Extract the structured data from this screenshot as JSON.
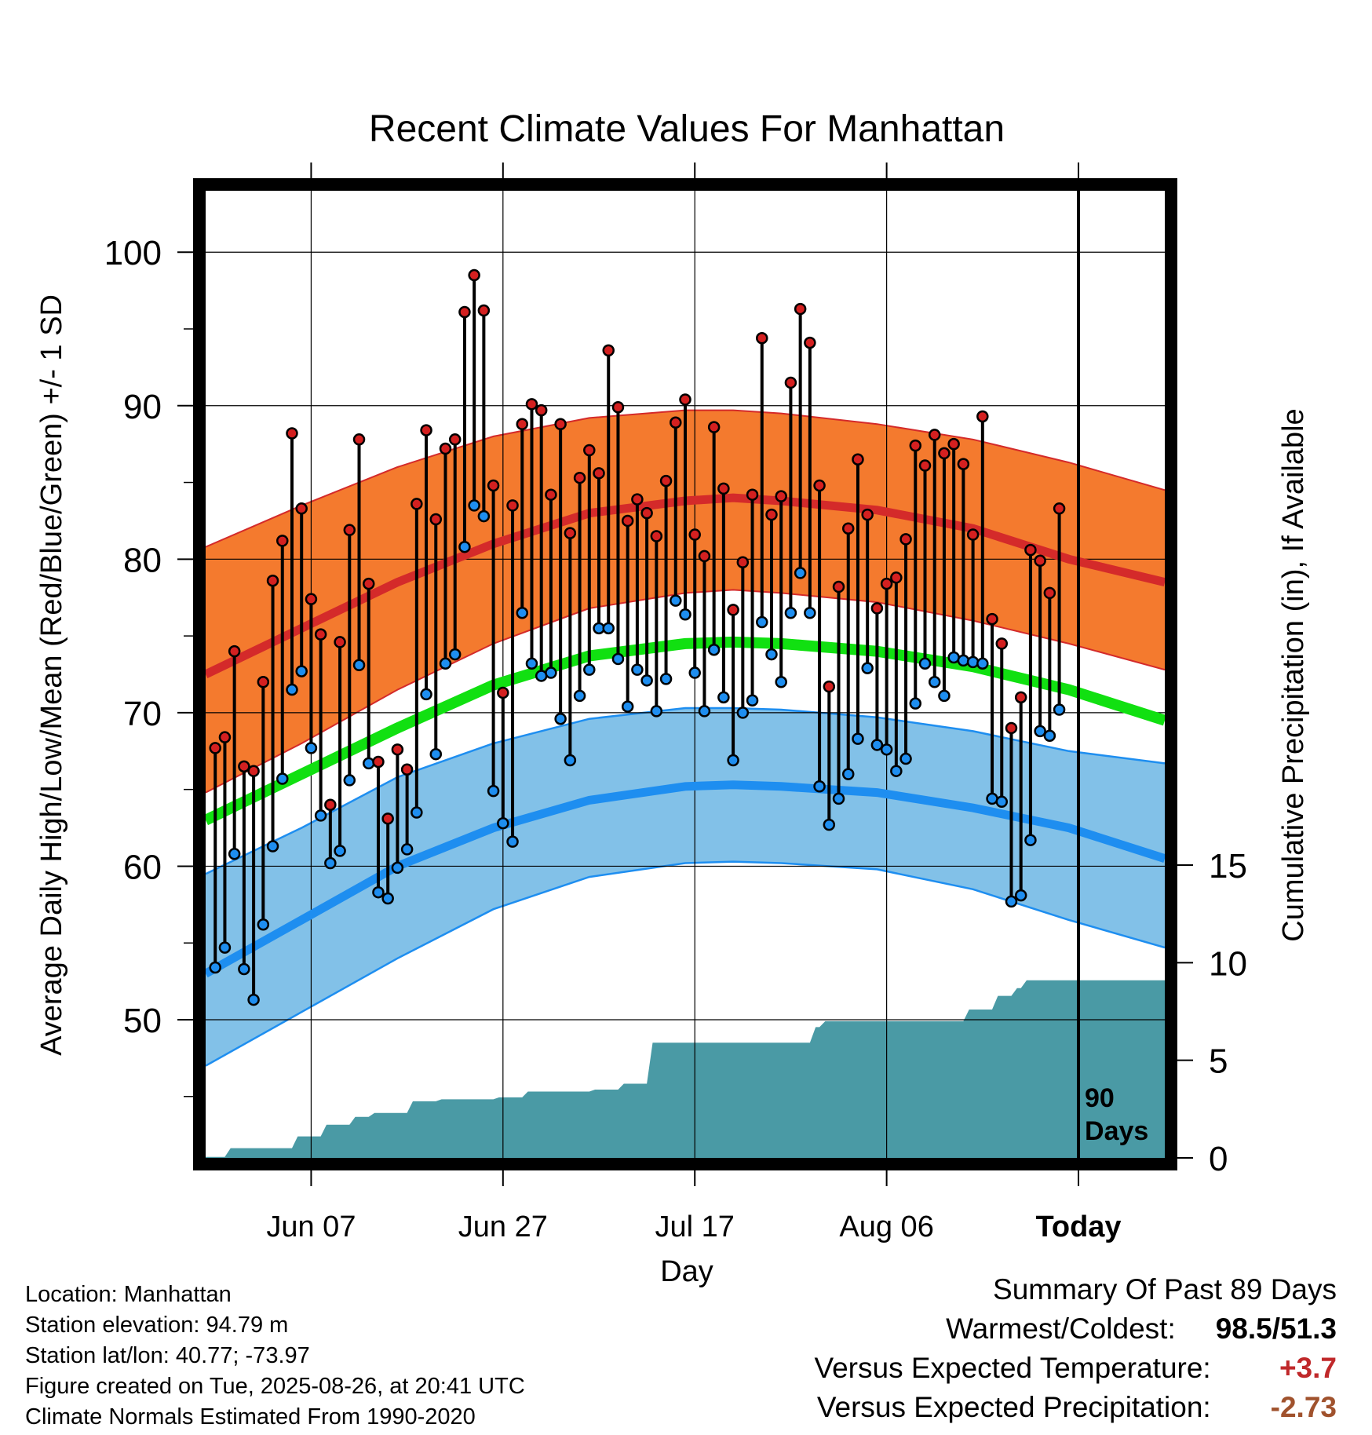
{
  "chart_data": {
    "type": "line",
    "title": "Recent Climate Values For Manhattan",
    "xlabel": "Day",
    "ylabel": "Average Daily High/Low/Mean (Red/Blue/Green) +/- 1 SD",
    "ylabel_right": "Cumulative Precipitation (in), If Available",
    "ylim": [
      41,
      104
    ],
    "y_ticks": [
      50,
      60,
      70,
      80,
      90,
      100
    ],
    "y_right_lim": [
      0,
      15
    ],
    "y_right_ticks": [
      0,
      5,
      10,
      15
    ],
    "x_range_days": [
      0,
      100
    ],
    "x_ticks": [
      {
        "day": 11,
        "label": "Jun 07"
      },
      {
        "day": 31,
        "label": "Jun 27"
      },
      {
        "day": 51,
        "label": "Jul 17"
      },
      {
        "day": 71,
        "label": "Aug 06"
      },
      {
        "day": 91,
        "label": "Today"
      }
    ],
    "today_day": 91,
    "today_label": [
      "90",
      "Days"
    ],
    "grid": true,
    "normals": {
      "days": [
        0,
        10,
        20,
        30,
        40,
        50,
        55,
        60,
        70,
        80,
        90,
        100
      ],
      "high_mean": [
        72.5,
        75.5,
        78.5,
        81,
        83,
        83.8,
        84,
        83.8,
        83.2,
        82,
        80,
        78.5
      ],
      "high_plus_sd": [
        80.8,
        83.5,
        86,
        88,
        89.2,
        89.7,
        89.7,
        89.5,
        88.8,
        87.8,
        86.3,
        84.5
      ],
      "high_minus_sd": [
        64.8,
        68,
        71.5,
        74.5,
        76.8,
        77.8,
        78,
        77.8,
        77.2,
        76,
        74.5,
        72.8
      ],
      "low_mean": [
        53,
        56.5,
        60,
        62.5,
        64.3,
        65.2,
        65.3,
        65.2,
        64.8,
        63.8,
        62.5,
        60.5
      ],
      "low_plus_sd": [
        59.5,
        62.5,
        65.8,
        68,
        69.6,
        70.3,
        70.3,
        70.2,
        69.7,
        68.8,
        67.5,
        66.7
      ],
      "low_minus_sd": [
        47,
        50.5,
        54,
        57.2,
        59.3,
        60.2,
        60.3,
        60.2,
        59.8,
        58.5,
        56.5,
        54.7
      ],
      "mean": [
        63,
        66,
        69,
        71.8,
        73.7,
        74.5,
        74.6,
        74.5,
        74,
        73,
        71.5,
        69.5
      ]
    },
    "series": [
      {
        "name": "High",
        "color": "#d42020",
        "values": [
          67.7,
          68.4,
          74.0,
          66.5,
          66.2,
          72.0,
          78.6,
          81.2,
          88.2,
          83.3,
          77.4,
          75.1,
          64.0,
          74.6,
          81.9,
          87.8,
          78.4,
          66.8,
          63.1,
          67.6,
          66.3,
          83.6,
          88.4,
          82.6,
          87.2,
          87.8,
          96.1,
          98.5,
          96.2,
          84.8,
          71.3,
          83.5,
          88.8,
          90.1,
          89.7,
          84.2,
          88.8,
          81.7,
          85.3,
          87.1,
          85.6,
          93.6,
          89.9,
          82.5,
          83.9,
          83.0,
          81.5,
          85.1,
          88.9,
          90.4,
          81.6,
          80.2,
          88.6,
          84.6,
          76.7,
          79.8,
          84.2,
          94.4,
          82.9,
          84.1,
          91.5,
          96.3,
          94.1,
          84.8,
          71.7,
          78.2,
          82.0,
          86.5,
          82.9,
          76.8,
          78.4,
          78.8,
          81.3,
          87.4,
          86.1,
          88.1,
          86.9,
          87.5,
          86.2,
          81.6,
          89.3,
          76.1,
          74.5,
          69.0,
          71.0,
          80.6,
          79.9,
          77.8,
          83.3
        ]
      },
      {
        "name": "Low",
        "color": "#1e8ef0",
        "values": [
          53.4,
          54.7,
          60.8,
          53.3,
          51.3,
          56.2,
          61.3,
          65.7,
          71.5,
          72.7,
          67.7,
          63.3,
          60.2,
          61.0,
          65.6,
          73.1,
          66.7,
          58.3,
          57.9,
          59.9,
          61.1,
          63.5,
          71.2,
          67.3,
          73.2,
          73.8,
          80.8,
          83.5,
          82.8,
          64.9,
          62.8,
          61.6,
          76.5,
          73.2,
          72.4,
          72.6,
          69.6,
          66.9,
          71.1,
          72.8,
          75.5,
          75.5,
          73.5,
          70.4,
          72.8,
          72.1,
          70.1,
          72.2,
          77.3,
          76.4,
          72.6,
          70.1,
          74.1,
          71.0,
          66.9,
          70.0,
          70.8,
          75.9,
          73.8,
          72.0,
          76.5,
          79.1,
          76.5,
          65.2,
          62.7,
          64.4,
          66.0,
          68.3,
          72.9,
          67.9,
          67.6,
          66.2,
          67.0,
          70.6,
          73.2,
          72.0,
          71.1,
          73.6,
          73.4,
          73.3,
          73.2,
          64.4,
          64.2,
          57.7,
          58.1,
          61.7,
          68.8,
          68.5,
          70.2
        ]
      }
    ],
    "precip_cumulative": {
      "days": [
        0,
        2,
        2.6,
        9,
        9.6,
        12,
        12.6,
        15,
        15.6,
        17,
        17.6,
        21,
        21.6,
        24,
        24.6,
        30,
        30.6,
        33,
        33.6,
        40,
        40.6,
        43,
        43.6,
        46,
        46.6,
        63,
        63.6,
        64,
        64.6,
        79,
        79.6,
        82,
        82.6,
        84,
        84.6,
        85,
        85.6,
        100
      ],
      "values": [
        0.05,
        0.05,
        0.5,
        0.5,
        1.1,
        1.1,
        1.7,
        1.7,
        2.1,
        2.1,
        2.3,
        2.3,
        2.9,
        2.9,
        3.0,
        3.0,
        3.1,
        3.1,
        3.4,
        3.4,
        3.5,
        3.5,
        3.8,
        3.8,
        5.9,
        5.9,
        6.7,
        6.7,
        7.0,
        7.0,
        7.6,
        7.6,
        8.3,
        8.3,
        8.7,
        8.7,
        9.1,
        9.1
      ],
      "color": "#4a9aa5"
    }
  },
  "info": {
    "location": "Location: Manhattan",
    "elevation": "Station elevation: 94.79 m",
    "latlon": "Station lat/lon: 40.77; -73.97",
    "created": "Figure created on Tue, 2025-08-26, at 20:41 UTC",
    "normals": "Climate Normals Estimated From 1990-2020"
  },
  "summary": {
    "title": "Summary Of Past 89 Days",
    "warm_cold_label": "Warmest/Coldest:",
    "warm_cold_value": "98.5/51.3",
    "temp_label": "Versus Expected Temperature:",
    "temp_value": "+3.7",
    "temp_color": "#c0282a",
    "precip_label": "Versus Expected Precipitation:",
    "precip_value": "-2.73",
    "precip_color": "#a0522d"
  }
}
